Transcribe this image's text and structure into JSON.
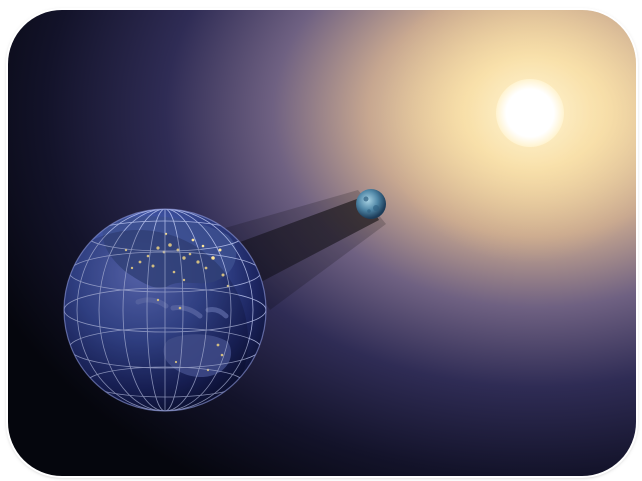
{
  "scene": {
    "objects": [
      {
        "name": "sun",
        "color": "#fffbe8"
      },
      {
        "name": "moon",
        "color": "#5a8fa8"
      },
      {
        "name": "earth",
        "color": "#2a3f7c"
      },
      {
        "name": "moon-shadow-cone",
        "color": "#000000"
      }
    ],
    "colors": {
      "space_dark": "#05060d",
      "space_mid": "#2c2a55",
      "glow_warm": "#f6dca3",
      "earth_lights": "#ffe69a",
      "graticule": "#cfd8ff"
    }
  }
}
